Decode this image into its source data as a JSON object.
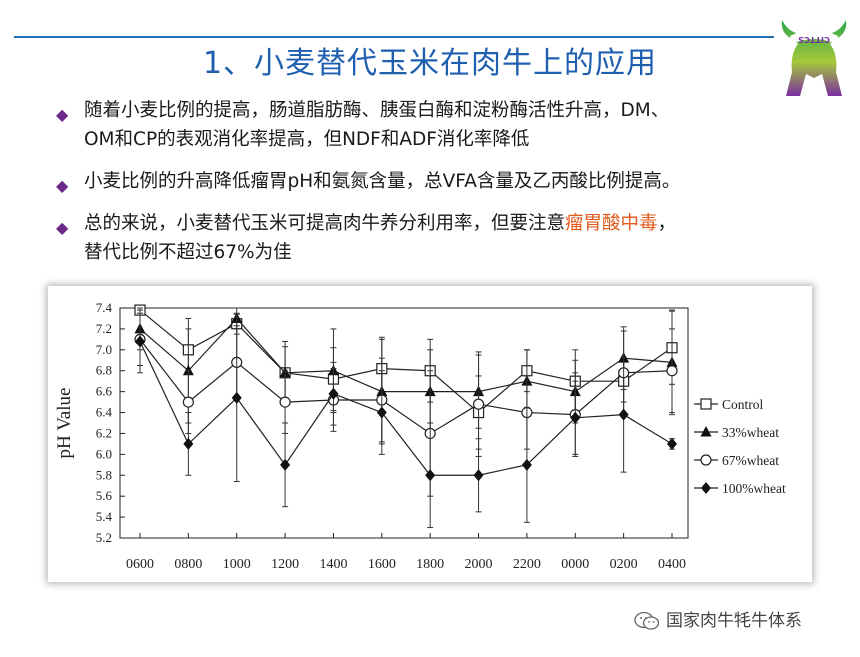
{
  "slide": {
    "title": "1、小麦替代玉米在肉牛上的应用",
    "logo_text": "CITTCS",
    "bullets": [
      {
        "text": "随着小麦比例的提高，肠道脂肪酶、胰蛋白酶和淀粉酶活性升高，DM、OM和CP的表观消化率提高，但NDF和ADF消化率降低",
        "line1": "随着小麦比例的提高，肠道脂肪酶、胰蛋白酶和淀粉酶活性升高，DM、",
        "line2": "OM和CP的表观消化率提高，但NDF和ADF消化率降低"
      },
      {
        "text": "小麦比例的升高降低瘤胃pH和氨氮含量，总VFA含量及乙丙酸比例提高。"
      },
      {
        "prefix": "总的来说，小麦替代玉米可提高肉牛养分利用率，但要注意",
        "highlight": "瘤胃酸中毒",
        "suffix": "，",
        "line2": "替代比例不超过67%为佳"
      }
    ],
    "footer": "国家肉牛牦牛体系"
  },
  "colors": {
    "title": "#1f5fb0",
    "rule": "#1f6fb5",
    "bullet": "#6a2a8a",
    "highlight": "#e25a1c"
  },
  "chart_data": {
    "type": "line",
    "ylabel": "pH Value",
    "xlabel": "",
    "categories": [
      "0600",
      "0800",
      "1000",
      "1200",
      "1400",
      "1600",
      "1800",
      "2000",
      "2200",
      "0000",
      "0200",
      "0400"
    ],
    "yticks": [
      "5.2",
      "5.4",
      "5.6",
      "5.8",
      "6.0",
      "6.2",
      "6.4",
      "6.6",
      "6.8",
      "7.0",
      "7.2",
      "7.4"
    ],
    "ylim": [
      5.2,
      7.4
    ],
    "legend_position": "right",
    "series": [
      {
        "name": "Control",
        "marker": "square-open",
        "values": [
          7.38,
          7.0,
          7.25,
          6.78,
          6.72,
          6.82,
          6.8,
          6.4,
          6.8,
          6.7,
          6.7,
          7.02
        ],
        "err": [
          0.0,
          0.2,
          0.1,
          0.25,
          0.3,
          0.3,
          0.3,
          0.35,
          0.2,
          0.3,
          0.2,
          0.35
        ]
      },
      {
        "name": "33%wheat",
        "marker": "triangle-filled",
        "values": [
          7.2,
          6.8,
          7.3,
          6.78,
          6.8,
          6.6,
          6.6,
          6.6,
          6.7,
          6.6,
          6.92,
          6.88
        ],
        "err": [
          0.2,
          0.5,
          0.1,
          0.3,
          0.4,
          0.5,
          0.4,
          0.35,
          0.3,
          0.3,
          0.3,
          0.5
        ]
      },
      {
        "name": "67%wheat",
        "marker": "circle-open",
        "values": [
          7.1,
          6.5,
          6.88,
          6.5,
          6.52,
          6.52,
          6.2,
          6.48,
          6.4,
          6.38,
          6.78,
          6.8
        ],
        "err": [
          0.25,
          0.3,
          0.35,
          0.3,
          0.3,
          0.4,
          0.6,
          0.5,
          0.35,
          0.4,
          0.4,
          0.4
        ]
      },
      {
        "name": "100%wheat",
        "marker": "diamond-filled",
        "values": [
          7.08,
          6.1,
          6.54,
          5.9,
          6.58,
          6.4,
          5.8,
          5.8,
          5.9,
          6.35,
          6.38,
          6.1
        ],
        "err": [
          0.3,
          0.3,
          0.8,
          0.4,
          0.3,
          0.4,
          0.5,
          0.35,
          0.55,
          0.35,
          0.55,
          0.05
        ]
      }
    ]
  }
}
